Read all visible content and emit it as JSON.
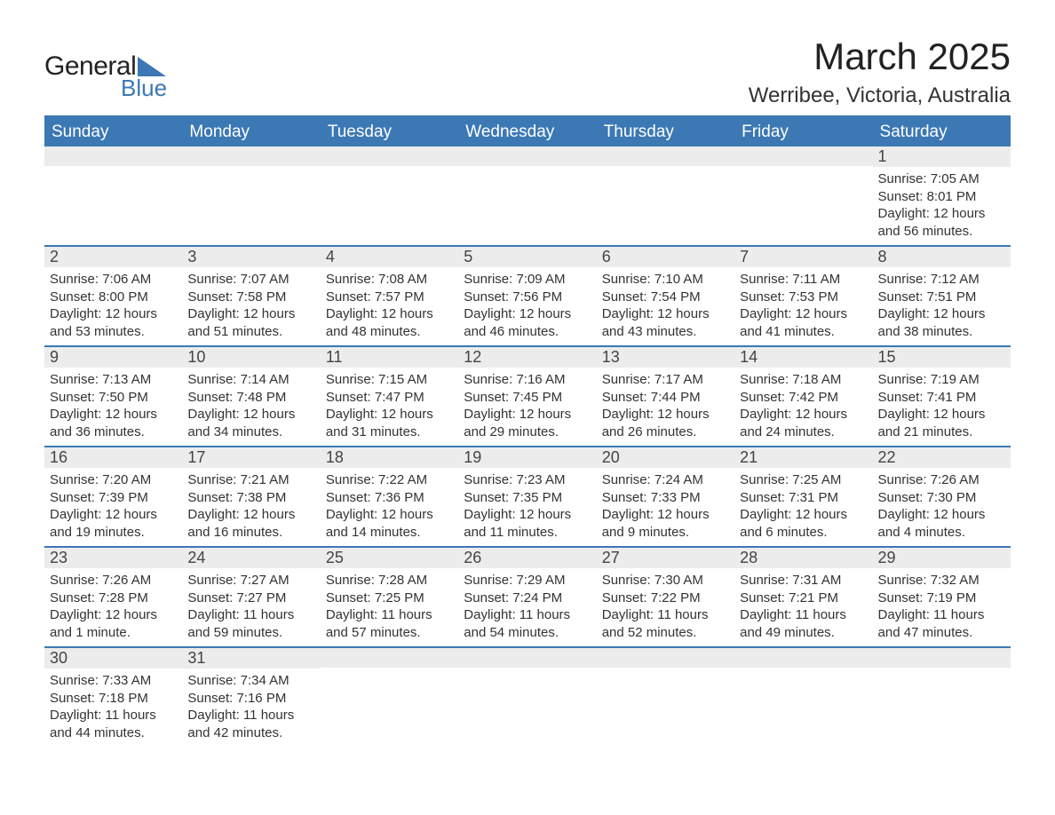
{
  "logo": {
    "text1": "General",
    "text2": "Blue"
  },
  "title": "March 2025",
  "location": "Werribee, Victoria, Australia",
  "colors": {
    "header_bg": "#3c78b4",
    "header_text": "#ffffff",
    "row_border": "#3c78b4",
    "daynum_bg": "#ececec",
    "text": "#333333",
    "page_bg": "#ffffff"
  },
  "typography": {
    "title_fontsize": 42,
    "location_fontsize": 24,
    "header_fontsize": 19,
    "daynum_fontsize": 18,
    "body_fontsize": 15
  },
  "day_headers": [
    "Sunday",
    "Monday",
    "Tuesday",
    "Wednesday",
    "Thursday",
    "Friday",
    "Saturday"
  ],
  "weeks": [
    [
      {
        "n": "",
        "sr": "",
        "ss": "",
        "dl": ""
      },
      {
        "n": "",
        "sr": "",
        "ss": "",
        "dl": ""
      },
      {
        "n": "",
        "sr": "",
        "ss": "",
        "dl": ""
      },
      {
        "n": "",
        "sr": "",
        "ss": "",
        "dl": ""
      },
      {
        "n": "",
        "sr": "",
        "ss": "",
        "dl": ""
      },
      {
        "n": "",
        "sr": "",
        "ss": "",
        "dl": ""
      },
      {
        "n": "1",
        "sr": "Sunrise: 7:05 AM",
        "ss": "Sunset: 8:01 PM",
        "dl": "Daylight: 12 hours and 56 minutes."
      }
    ],
    [
      {
        "n": "2",
        "sr": "Sunrise: 7:06 AM",
        "ss": "Sunset: 8:00 PM",
        "dl": "Daylight: 12 hours and 53 minutes."
      },
      {
        "n": "3",
        "sr": "Sunrise: 7:07 AM",
        "ss": "Sunset: 7:58 PM",
        "dl": "Daylight: 12 hours and 51 minutes."
      },
      {
        "n": "4",
        "sr": "Sunrise: 7:08 AM",
        "ss": "Sunset: 7:57 PM",
        "dl": "Daylight: 12 hours and 48 minutes."
      },
      {
        "n": "5",
        "sr": "Sunrise: 7:09 AM",
        "ss": "Sunset: 7:56 PM",
        "dl": "Daylight: 12 hours and 46 minutes."
      },
      {
        "n": "6",
        "sr": "Sunrise: 7:10 AM",
        "ss": "Sunset: 7:54 PM",
        "dl": "Daylight: 12 hours and 43 minutes."
      },
      {
        "n": "7",
        "sr": "Sunrise: 7:11 AM",
        "ss": "Sunset: 7:53 PM",
        "dl": "Daylight: 12 hours and 41 minutes."
      },
      {
        "n": "8",
        "sr": "Sunrise: 7:12 AM",
        "ss": "Sunset: 7:51 PM",
        "dl": "Daylight: 12 hours and 38 minutes."
      }
    ],
    [
      {
        "n": "9",
        "sr": "Sunrise: 7:13 AM",
        "ss": "Sunset: 7:50 PM",
        "dl": "Daylight: 12 hours and 36 minutes."
      },
      {
        "n": "10",
        "sr": "Sunrise: 7:14 AM",
        "ss": "Sunset: 7:48 PM",
        "dl": "Daylight: 12 hours and 34 minutes."
      },
      {
        "n": "11",
        "sr": "Sunrise: 7:15 AM",
        "ss": "Sunset: 7:47 PM",
        "dl": "Daylight: 12 hours and 31 minutes."
      },
      {
        "n": "12",
        "sr": "Sunrise: 7:16 AM",
        "ss": "Sunset: 7:45 PM",
        "dl": "Daylight: 12 hours and 29 minutes."
      },
      {
        "n": "13",
        "sr": "Sunrise: 7:17 AM",
        "ss": "Sunset: 7:44 PM",
        "dl": "Daylight: 12 hours and 26 minutes."
      },
      {
        "n": "14",
        "sr": "Sunrise: 7:18 AM",
        "ss": "Sunset: 7:42 PM",
        "dl": "Daylight: 12 hours and 24 minutes."
      },
      {
        "n": "15",
        "sr": "Sunrise: 7:19 AM",
        "ss": "Sunset: 7:41 PM",
        "dl": "Daylight: 12 hours and 21 minutes."
      }
    ],
    [
      {
        "n": "16",
        "sr": "Sunrise: 7:20 AM",
        "ss": "Sunset: 7:39 PM",
        "dl": "Daylight: 12 hours and 19 minutes."
      },
      {
        "n": "17",
        "sr": "Sunrise: 7:21 AM",
        "ss": "Sunset: 7:38 PM",
        "dl": "Daylight: 12 hours and 16 minutes."
      },
      {
        "n": "18",
        "sr": "Sunrise: 7:22 AM",
        "ss": "Sunset: 7:36 PM",
        "dl": "Daylight: 12 hours and 14 minutes."
      },
      {
        "n": "19",
        "sr": "Sunrise: 7:23 AM",
        "ss": "Sunset: 7:35 PM",
        "dl": "Daylight: 12 hours and 11 minutes."
      },
      {
        "n": "20",
        "sr": "Sunrise: 7:24 AM",
        "ss": "Sunset: 7:33 PM",
        "dl": "Daylight: 12 hours and 9 minutes."
      },
      {
        "n": "21",
        "sr": "Sunrise: 7:25 AM",
        "ss": "Sunset: 7:31 PM",
        "dl": "Daylight: 12 hours and 6 minutes."
      },
      {
        "n": "22",
        "sr": "Sunrise: 7:26 AM",
        "ss": "Sunset: 7:30 PM",
        "dl": "Daylight: 12 hours and 4 minutes."
      }
    ],
    [
      {
        "n": "23",
        "sr": "Sunrise: 7:26 AM",
        "ss": "Sunset: 7:28 PM",
        "dl": "Daylight: 12 hours and 1 minute."
      },
      {
        "n": "24",
        "sr": "Sunrise: 7:27 AM",
        "ss": "Sunset: 7:27 PM",
        "dl": "Daylight: 11 hours and 59 minutes."
      },
      {
        "n": "25",
        "sr": "Sunrise: 7:28 AM",
        "ss": "Sunset: 7:25 PM",
        "dl": "Daylight: 11 hours and 57 minutes."
      },
      {
        "n": "26",
        "sr": "Sunrise: 7:29 AM",
        "ss": "Sunset: 7:24 PM",
        "dl": "Daylight: 11 hours and 54 minutes."
      },
      {
        "n": "27",
        "sr": "Sunrise: 7:30 AM",
        "ss": "Sunset: 7:22 PM",
        "dl": "Daylight: 11 hours and 52 minutes."
      },
      {
        "n": "28",
        "sr": "Sunrise: 7:31 AM",
        "ss": "Sunset: 7:21 PM",
        "dl": "Daylight: 11 hours and 49 minutes."
      },
      {
        "n": "29",
        "sr": "Sunrise: 7:32 AM",
        "ss": "Sunset: 7:19 PM",
        "dl": "Daylight: 11 hours and 47 minutes."
      }
    ],
    [
      {
        "n": "30",
        "sr": "Sunrise: 7:33 AM",
        "ss": "Sunset: 7:18 PM",
        "dl": "Daylight: 11 hours and 44 minutes."
      },
      {
        "n": "31",
        "sr": "Sunrise: 7:34 AM",
        "ss": "Sunset: 7:16 PM",
        "dl": "Daylight: 11 hours and 42 minutes."
      },
      {
        "n": "",
        "sr": "",
        "ss": "",
        "dl": ""
      },
      {
        "n": "",
        "sr": "",
        "ss": "",
        "dl": ""
      },
      {
        "n": "",
        "sr": "",
        "ss": "",
        "dl": ""
      },
      {
        "n": "",
        "sr": "",
        "ss": "",
        "dl": ""
      },
      {
        "n": "",
        "sr": "",
        "ss": "",
        "dl": ""
      }
    ]
  ]
}
